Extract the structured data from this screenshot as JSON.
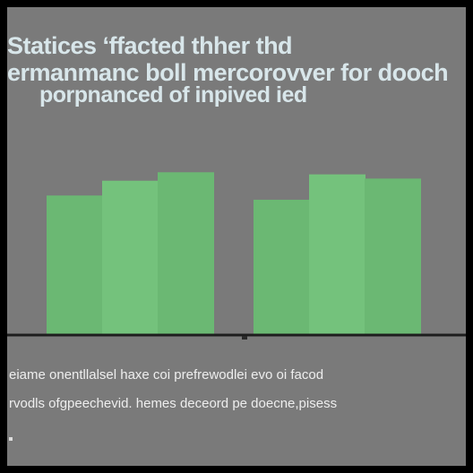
{
  "title": {
    "line1": "Statices  ʻffacted thher thd",
    "line2": "ermanmanc boll mercorovver for dooch",
    "line3": "porpnanced  of inpived   ied"
  },
  "caption": {
    "line1": "eiame onentllalsel  haxe coi prefrewodlei evo oi facod",
    "line2": "rvodls ofgpeechevid. hemes  deceord pe doecne,pisess"
  },
  "colors": {
    "background": "#7a7a7a",
    "bar": "#74c27c",
    "bar_dark": "#6bb873",
    "axis": "#1e1e1e",
    "title_text": "#d8e6ea",
    "caption_text": "#eeeeee"
  },
  "chart_data": {
    "type": "bar",
    "groups": 2,
    "values": [
      [
        0.66,
        0.73,
        0.77
      ],
      [
        0.64,
        0.76,
        0.74
      ]
    ],
    "ylim": [
      0,
      1
    ],
    "grid": false,
    "legend": "none",
    "title": "",
    "xlabel": "",
    "ylabel": ""
  }
}
